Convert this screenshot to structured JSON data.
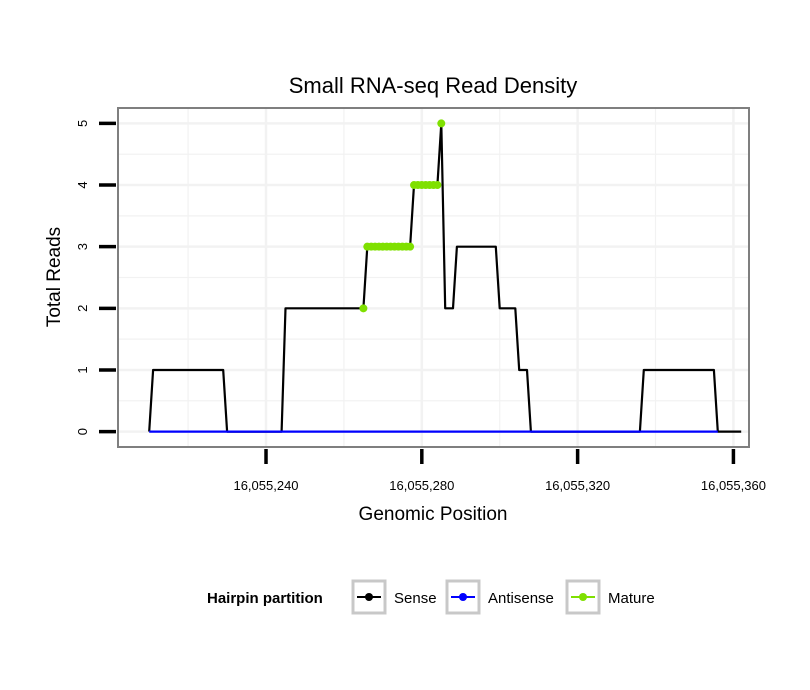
{
  "chart_data": {
    "type": "line",
    "title": "Small RNA-seq Read Density",
    "xlabel": "Genomic Position",
    "ylabel": "Total Reads",
    "xlim": [
      16055202,
      16055364
    ],
    "ylim": [
      -0.25,
      5.25
    ],
    "x_ticks": [
      {
        "value": 16055240,
        "label": "16,055,240"
      },
      {
        "value": 16055280,
        "label": "16,055,280"
      },
      {
        "value": 16055320,
        "label": "16,055,320"
      },
      {
        "value": 16055360,
        "label": "16,055,360"
      }
    ],
    "y_ticks": [
      {
        "value": 0,
        "label": "0"
      },
      {
        "value": 1,
        "label": "1"
      },
      {
        "value": 2,
        "label": "2"
      },
      {
        "value": 3,
        "label": "3"
      },
      {
        "value": 4,
        "label": "4"
      },
      {
        "value": 5,
        "label": "5"
      }
    ],
    "series": [
      {
        "name": "Sense",
        "color": "#000000",
        "points": [
          [
            16055210,
            0
          ],
          [
            16055211,
            1
          ],
          [
            16055229,
            1
          ],
          [
            16055230,
            0
          ],
          [
            16055244,
            0
          ],
          [
            16055245,
            2
          ],
          [
            16055265,
            2
          ],
          [
            16055266,
            3
          ],
          [
            16055277,
            3
          ],
          [
            16055278,
            4
          ],
          [
            16055284,
            4
          ],
          [
            16055285,
            5
          ],
          [
            16055286,
            2
          ],
          [
            16055288,
            2
          ],
          [
            16055289,
            3
          ],
          [
            16055299,
            3
          ],
          [
            16055300,
            2
          ],
          [
            16055304,
            2
          ],
          [
            16055305,
            1
          ],
          [
            16055307,
            1
          ],
          [
            16055308,
            0
          ],
          [
            16055336,
            0
          ],
          [
            16055337,
            1
          ],
          [
            16055355,
            1
          ],
          [
            16055356,
            0
          ],
          [
            16055362,
            0
          ]
        ]
      },
      {
        "name": "Antisense",
        "color": "#0000ff",
        "points": [
          [
            16055210,
            0
          ],
          [
            16055356,
            0
          ]
        ]
      },
      {
        "name": "Mature",
        "color": "#7fe000",
        "segments": [
          [
            [
              16055265,
              2
            ]
          ],
          [
            [
              16055266,
              3
            ],
            [
              16055267,
              3
            ],
            [
              16055268,
              3
            ],
            [
              16055269,
              3
            ],
            [
              16055270,
              3
            ],
            [
              16055271,
              3
            ],
            [
              16055272,
              3
            ],
            [
              16055273,
              3
            ],
            [
              16055274,
              3
            ],
            [
              16055275,
              3
            ],
            [
              16055276,
              3
            ],
            [
              16055277,
              3
            ]
          ],
          [
            [
              16055278,
              4
            ],
            [
              16055279,
              4
            ],
            [
              16055280,
              4
            ],
            [
              16055281,
              4
            ],
            [
              16055282,
              4
            ],
            [
              16055283,
              4
            ],
            [
              16055284,
              4
            ]
          ],
          [
            [
              16055285,
              5
            ]
          ]
        ]
      }
    ],
    "legend": {
      "title": "Hairpin partition",
      "position": "bottom",
      "entries": [
        {
          "label": "Sense",
          "color": "#000000"
        },
        {
          "label": "Antisense",
          "color": "#0000ff"
        },
        {
          "label": "Mature",
          "color": "#7fe000"
        }
      ]
    },
    "grid": true
  }
}
